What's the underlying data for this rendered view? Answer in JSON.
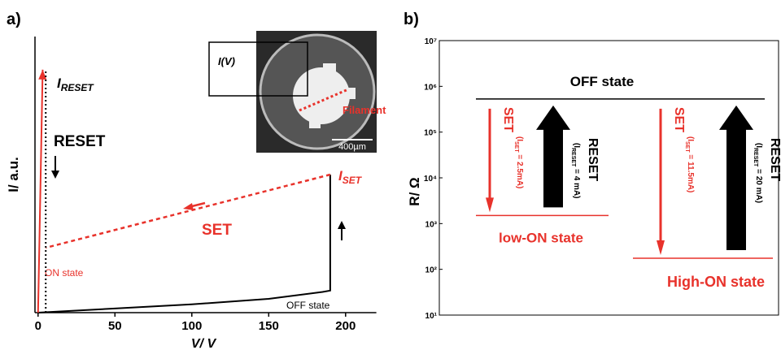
{
  "chart_data": [
    {
      "type": "line",
      "label": "a)",
      "xlabel": "V/ V",
      "ylabel": "I/ a.u.",
      "xlim": [
        -2,
        220
      ],
      "xticks": [
        0,
        50,
        100,
        150,
        200
      ],
      "ylim": [
        0,
        100
      ],
      "series": [
        {
          "color": "#000000",
          "style": "solid",
          "x": [
            0,
            50,
            100,
            150,
            185,
            190,
            190
          ],
          "values": [
            0,
            1.5,
            3,
            5,
            7.5,
            8,
            50
          ]
        },
        {
          "color": "#e8322b",
          "style": "dashed",
          "x": [
            190,
            5
          ],
          "values": [
            50,
            23.5
          ]
        },
        {
          "color": "#e8322b",
          "style": "solid",
          "arrow": true,
          "x": [
            0,
            3
          ],
          "values": [
            0,
            88
          ]
        },
        {
          "color": "#000000",
          "style": "dotted",
          "x": [
            5,
            5
          ],
          "values": [
            0,
            88
          ]
        }
      ],
      "i_reset": {
        "symbol": "I",
        "sub": "RESET"
      },
      "i_set": {
        "symbol": "I",
        "sub": "SET"
      },
      "reset_label": "RESET",
      "set_label": "SET",
      "on_label": "ON state",
      "off_label": "OFF state",
      "inset": {
        "label": "I(V)",
        "feature": "Filament",
        "scale": "400µm"
      }
    },
    {
      "type": "levels",
      "label": "b)",
      "ylabel": "R/ Ω",
      "log_y": true,
      "ylim": [
        10,
        10000000
      ],
      "yticks": [
        {
          "value": 10,
          "label": "10¹"
        },
        {
          "value": 100,
          "label": "10²"
        },
        {
          "value": 1000,
          "label": "10³"
        },
        {
          "value": 10000,
          "label": "10⁴"
        },
        {
          "value": 100000,
          "label": "10⁵"
        },
        {
          "value": 1000000,
          "label": "10⁶"
        },
        {
          "value": 10000000,
          "label": "10⁷"
        }
      ],
      "levels": [
        {
          "name": "OFF state",
          "value": 530000,
          "color": "#000000"
        },
        {
          "name": "low-ON state",
          "value": 1500,
          "color": "#e8322b"
        },
        {
          "name": "High-ON state",
          "value": 175,
          "color": "#e8322b"
        }
      ],
      "transitions": [
        {
          "label": "SET",
          "symbol": "(I",
          "sub": "SET",
          "current": " = 2.5mA)",
          "color": "#e8322b"
        },
        {
          "label": "RESET",
          "symbol": "(I",
          "sub": "RESET",
          "current": " = 4 mA)",
          "color": "#000000"
        },
        {
          "label": "SET",
          "symbol": "(I",
          "sub": "SET",
          "current": " = 11.5mA)",
          "color": "#e8322b"
        },
        {
          "label": "RESET",
          "symbol": "(I",
          "sub": "RESET",
          "current": " = 20 mA)",
          "color": "#000000"
        }
      ]
    }
  ]
}
